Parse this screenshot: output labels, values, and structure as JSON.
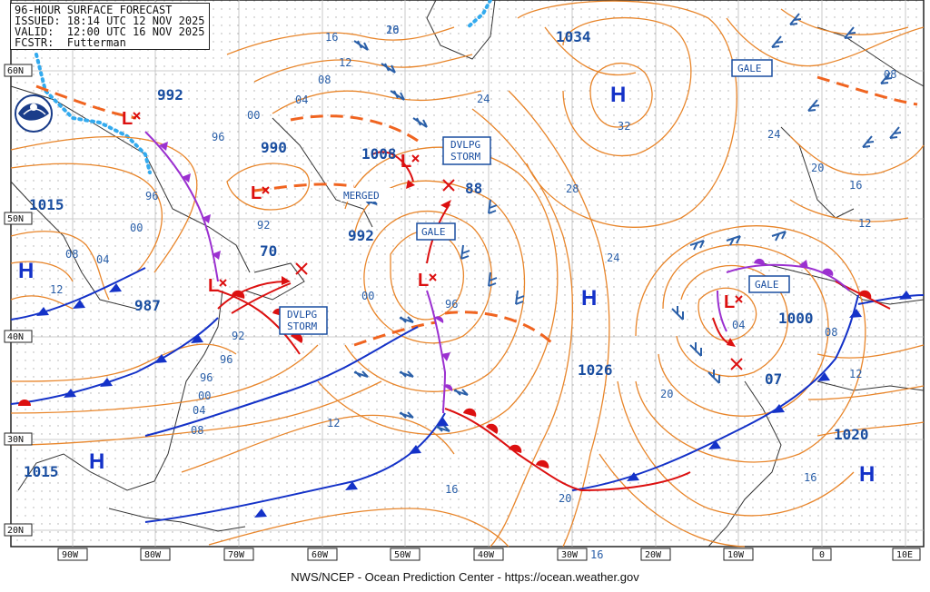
{
  "header": {
    "line1": "96-HOUR SURFACE FORECAST",
    "line2": "ISSUED: 18:14 UTC 12 NOV 2025",
    "line3": "VALID:  12:00 UTC 16 NOV 2025",
    "line4": "FCSTR:  Futterman"
  },
  "footer": "NWS/NCEP - Ocean Prediction Center - https://ocean.weather.gov",
  "longitude_labels": [
    "90W",
    "80W",
    "70W",
    "60W",
    "50W",
    "40W",
    "30W",
    "20W",
    "10W",
    "0",
    "10E"
  ],
  "latitude_labels": [
    "60N",
    "50N",
    "40N",
    "30N",
    "20N"
  ],
  "pressure_centers": {
    "h_1015_west": "1015",
    "l_992_nw": "992",
    "l_990": "990",
    "l_1008": "1008",
    "l_992_newfoundland": "992",
    "l_988": "88",
    "l_987": "987",
    "h_1034": "1034",
    "h_1026": "1026",
    "h_1015_south": "1015",
    "l_1000": "1000",
    "l_07": "07",
    "h_1020": "1020",
    "l_70": "70"
  },
  "symbols": {
    "high": "H",
    "low": "L"
  },
  "tags": {
    "gale_ne": "GALE",
    "gale_mid": "GALE",
    "gale_east": "GALE",
    "dvlpg_storm_top_1": "DVLPG",
    "dvlpg_storm_top_2": "STORM",
    "dvlpg_storm_left_1": "DVLPG",
    "dvlpg_storm_left_2": "STORM",
    "merged": "MERGED"
  },
  "isobar_labels": [
    "16",
    "20",
    "12",
    "08",
    "04",
    "00",
    "96",
    "92",
    "96",
    "00",
    "04",
    "08",
    "12",
    "24",
    "28",
    "32",
    "24",
    "20",
    "16",
    "12",
    "08",
    "04",
    "00",
    "96",
    "92",
    "96",
    "00",
    "04",
    "08",
    "12",
    "16",
    "20",
    "16",
    "20",
    "24",
    "20",
    "16",
    "12",
    "08",
    "04",
    "08",
    "12",
    "16",
    "20",
    "24",
    "32",
    "12",
    "08",
    "04",
    "00",
    "96"
  ],
  "colors": {
    "isobar": "#e8852a",
    "cold_front": "#1432c8",
    "warm_front": "#dc1010",
    "occluded_front": "#9b30d0",
    "trough": "#f06420",
    "coast": "#333333",
    "ice_edge": "#33aaee",
    "wind": "#2a5fa8",
    "grid": "#cccccc"
  },
  "icons": {
    "logo": "noaa-logo-icon"
  }
}
